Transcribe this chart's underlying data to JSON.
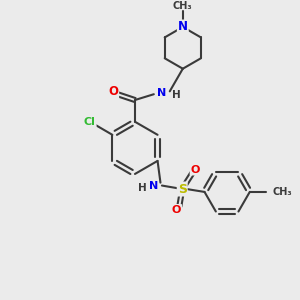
{
  "bg_color": "#ebebeb",
  "bond_color": "#3a3a3a",
  "line_width": 1.5,
  "atom_colors": {
    "N": "#0000ee",
    "O": "#ee0000",
    "Cl": "#33bb33",
    "S": "#bbbb00",
    "C": "#3a3a3a",
    "H": "#3a3a3a"
  },
  "figsize": [
    3.0,
    3.0
  ],
  "dpi": 100
}
